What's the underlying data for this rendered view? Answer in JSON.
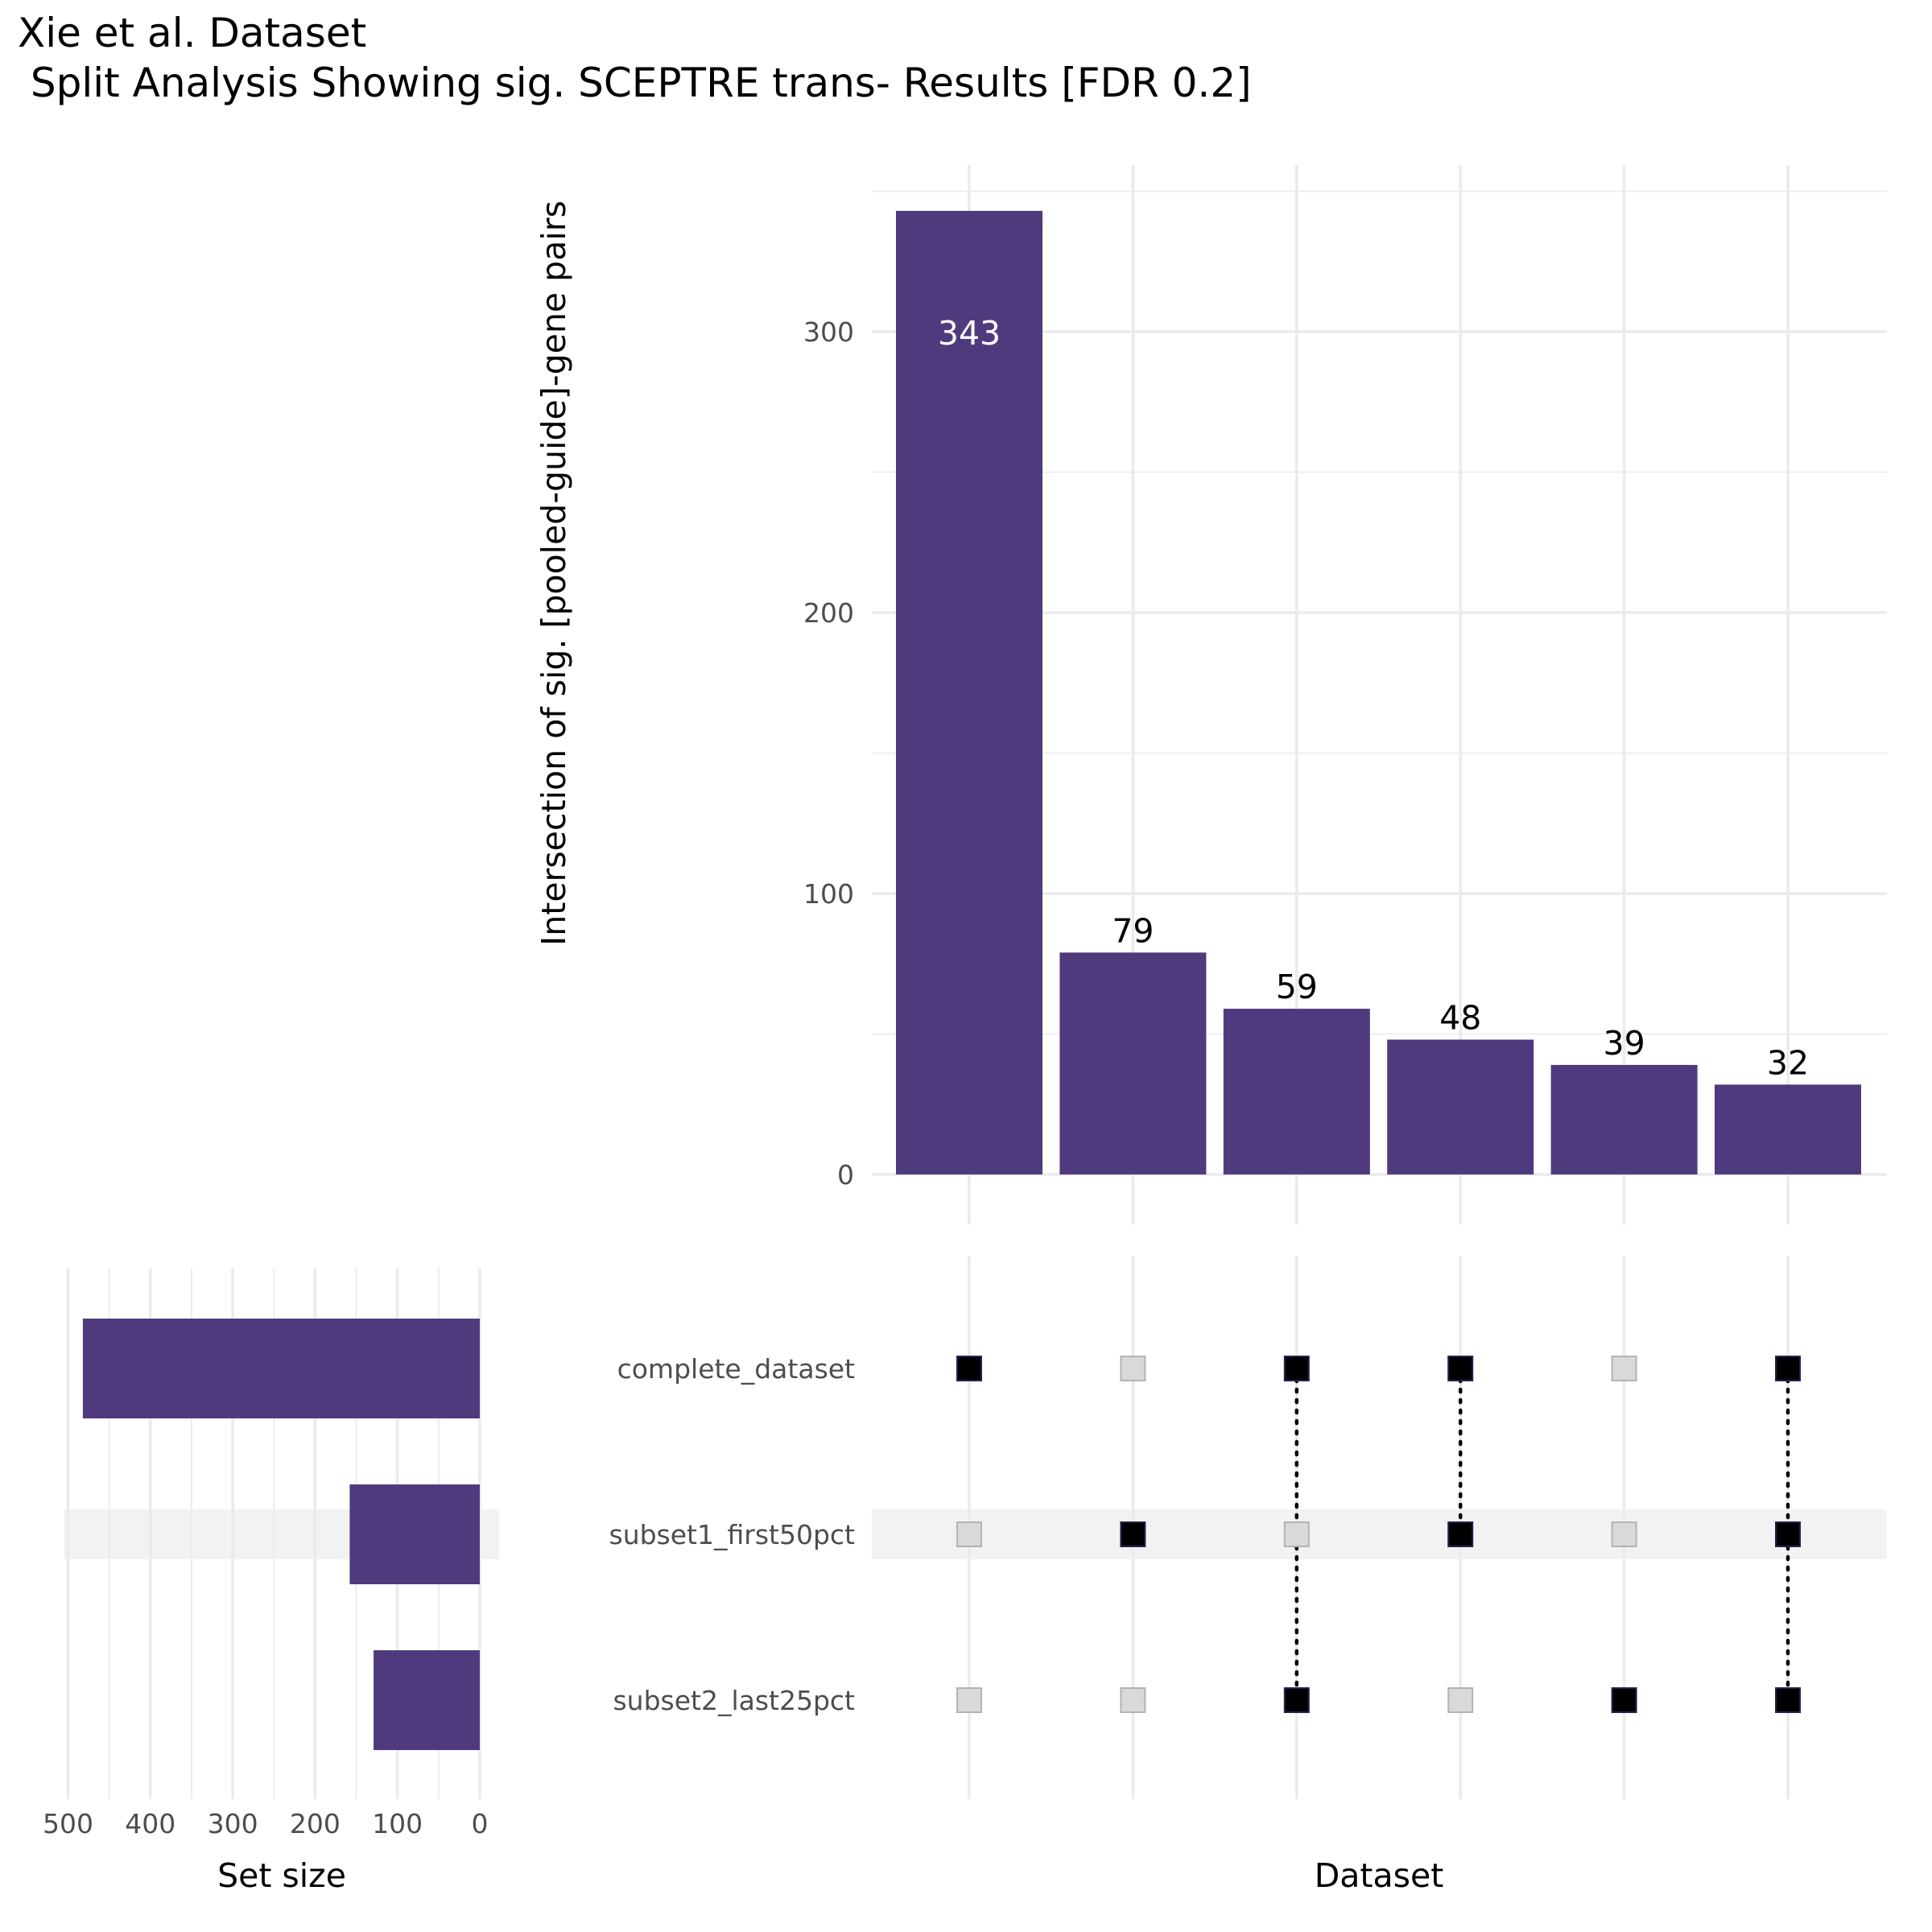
{
  "chart_data": {
    "type": "upset",
    "title": "Xie et al. Dataset",
    "subtitle": " Split Analysis Showing sig. SCEPTRE trans- Results [FDR 0.2]",
    "intersection_ylabel": "Intersection of sig. [pooled-guide]-gene pairs",
    "xlabel": "Dataset",
    "set_size_label": "Set size",
    "ylim": [
      0,
      350
    ],
    "yticks": [
      0,
      100,
      200,
      300
    ],
    "set_size_ticks": [
      500,
      400,
      300,
      200,
      100,
      0
    ],
    "set_size_lim": [
      500,
      0
    ],
    "sets": [
      {
        "name": "complete_dataset",
        "size": 482
      },
      {
        "name": "subset1_first50pct",
        "size": 158
      },
      {
        "name": "subset2_last25pct",
        "size": 129
      }
    ],
    "intersections": [
      {
        "value": 343,
        "label": "343",
        "members": [
          "complete_dataset"
        ]
      },
      {
        "value": 79,
        "label": "79",
        "members": [
          "subset1_first50pct"
        ]
      },
      {
        "value": 59,
        "label": "59",
        "members": [
          "complete_dataset",
          "subset2_last25pct"
        ]
      },
      {
        "value": 48,
        "label": "48",
        "members": [
          "complete_dataset",
          "subset1_first50pct"
        ]
      },
      {
        "value": 39,
        "label": "39",
        "members": [
          "subset2_last25pct"
        ]
      },
      {
        "value": 32,
        "label": "32",
        "members": [
          "complete_dataset",
          "subset1_first50pct",
          "subset2_last25pct"
        ]
      }
    ],
    "colors": {
      "bar": "#4f3a7e",
      "grid": "#ebebeb",
      "dot_active": "#000000",
      "dot_inactive": "#d9d9d9",
      "row_band": "#f2f2f2"
    },
    "grid": true
  }
}
